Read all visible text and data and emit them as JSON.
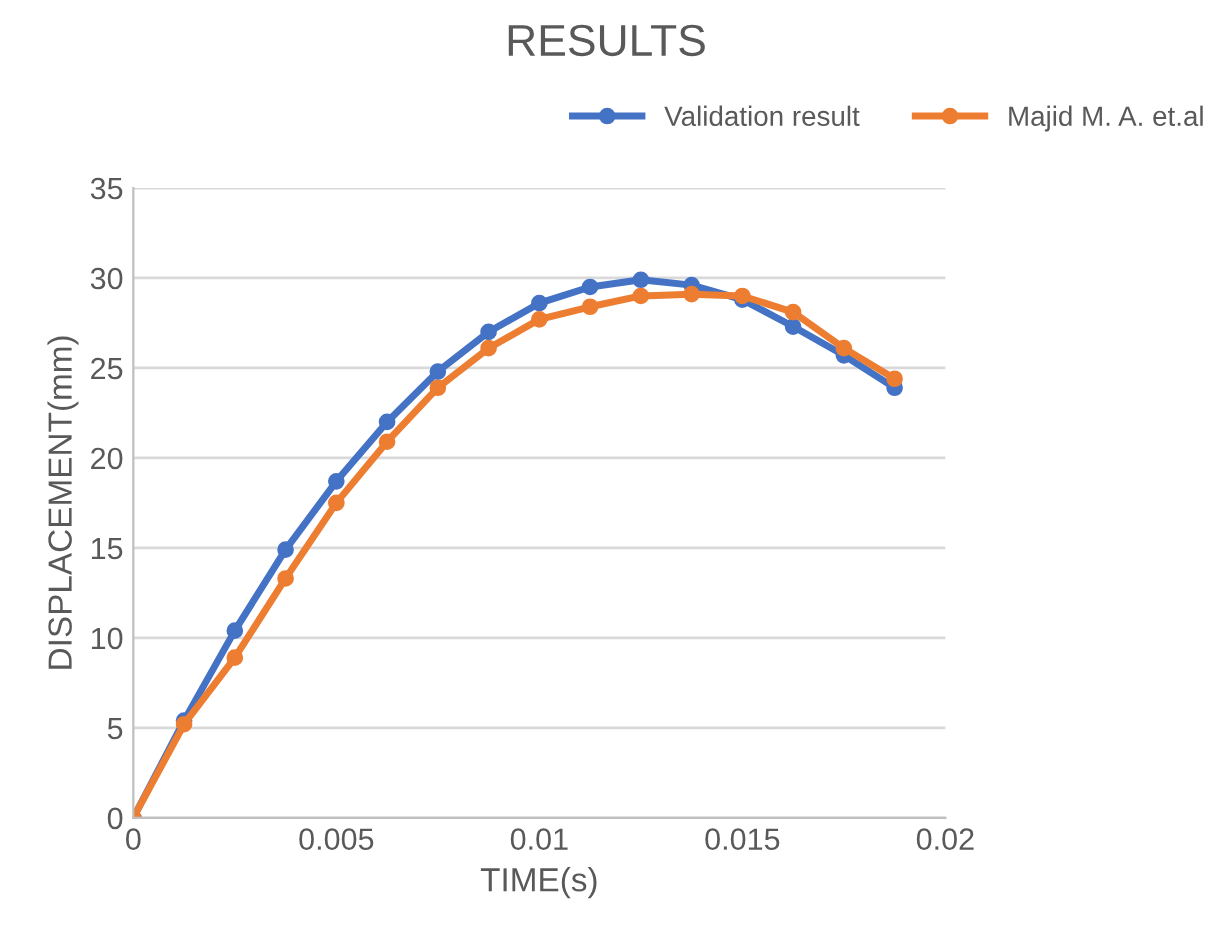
{
  "chart_data": {
    "type": "line",
    "title": "RESULTS",
    "xlabel": "TIME(s)",
    "ylabel": "DISPLACEMENT(mm)",
    "x": [
      0,
      0.00125,
      0.0025,
      0.00375,
      0.005,
      0.00625,
      0.0075,
      0.00875,
      0.01,
      0.01125,
      0.0125,
      0.01375,
      0.015,
      0.01625,
      0.0175,
      0.01875
    ],
    "series": [
      {
        "name": "Validation result",
        "color": "#4472c4",
        "values": [
          0,
          5.4,
          10.4,
          14.9,
          18.7,
          22.0,
          24.8,
          27.0,
          28.6,
          29.5,
          29.9,
          29.6,
          28.8,
          27.3,
          25.7,
          23.9
        ]
      },
      {
        "name": "Majid M. A. et.al",
        "color": "#ed7d31",
        "values": [
          0,
          5.2,
          8.9,
          13.3,
          17.5,
          20.9,
          23.9,
          26.1,
          27.7,
          28.4,
          29.0,
          29.1,
          29.0,
          28.1,
          26.1,
          24.4
        ]
      }
    ],
    "xlim": [
      0,
      0.02
    ],
    "xticks": [
      0,
      0.005,
      0.01,
      0.015,
      0.02
    ],
    "ylim": [
      0,
      35
    ],
    "yticks": [
      0,
      5,
      10,
      15,
      20,
      25,
      30,
      35
    ],
    "grid": "y",
    "legend": "top right",
    "marker": "circle",
    "line_style": "solid"
  }
}
